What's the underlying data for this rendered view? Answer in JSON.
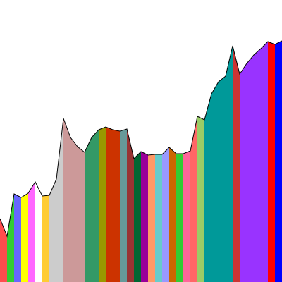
{
  "chart_data": {
    "type": "area",
    "title": "",
    "xlabel": "",
    "ylabel": "",
    "legend": "none",
    "grid": false,
    "xlim": [
      0,
      40
    ],
    "ylim": [
      0,
      40
    ],
    "profile": [
      [
        0,
        9
      ],
      [
        1,
        6.5
      ],
      [
        2,
        12.5
      ],
      [
        3,
        12
      ],
      [
        4,
        12.6
      ],
      [
        5,
        14.2
      ],
      [
        6,
        12.2
      ],
      [
        7,
        12.3
      ],
      [
        8,
        14.6
      ],
      [
        9,
        23.2
      ],
      [
        10,
        20.5
      ],
      [
        11,
        19.2
      ],
      [
        12,
        18.4
      ],
      [
        13,
        20.5
      ],
      [
        14,
        21.6
      ],
      [
        15,
        22.0
      ],
      [
        16,
        21.6
      ],
      [
        17,
        21.4
      ],
      [
        18,
        21.7
      ],
      [
        19,
        17.5
      ],
      [
        20,
        18.5
      ],
      [
        21,
        18.0
      ],
      [
        22,
        18.1
      ],
      [
        23,
        18.1
      ],
      [
        24,
        19.1
      ],
      [
        25,
        18.2
      ],
      [
        26,
        18.2
      ],
      [
        27,
        18.6
      ],
      [
        28,
        23.5
      ],
      [
        29,
        23.0
      ],
      [
        30,
        26.7
      ],
      [
        31,
        28.4
      ],
      [
        32,
        29.2
      ],
      [
        33,
        33.5
      ],
      [
        34,
        29.5
      ],
      [
        35,
        31.0
      ],
      [
        36,
        32.2
      ],
      [
        37,
        33.1
      ],
      [
        38,
        34.1
      ],
      [
        39,
        33.7
      ],
      [
        40,
        34.2
      ]
    ],
    "bands": [
      {
        "from": 0,
        "to": 1,
        "color": "#ff4d4d"
      },
      {
        "from": 1,
        "to": 2,
        "color": "#33cc33"
      },
      {
        "from": 2,
        "to": 3,
        "color": "#6666ff"
      },
      {
        "from": 3,
        "to": 4,
        "color": "#ffff00"
      },
      {
        "from": 4,
        "to": 5,
        "color": "#ff66ff"
      },
      {
        "from": 5,
        "to": 6,
        "color": "#ffffff"
      },
      {
        "from": 6,
        "to": 7,
        "color": "#ffcc33"
      },
      {
        "from": 7,
        "to": 9,
        "color": "#cccccc"
      },
      {
        "from": 9,
        "to": 12,
        "color": "#cc9999"
      },
      {
        "from": 12,
        "to": 14,
        "color": "#339966"
      },
      {
        "from": 14,
        "to": 15,
        "color": "#999900"
      },
      {
        "from": 15,
        "to": 17,
        "color": "#cc3300"
      },
      {
        "from": 17,
        "to": 18,
        "color": "#669999"
      },
      {
        "from": 18,
        "to": 19,
        "color": "#993333"
      },
      {
        "from": 19,
        "to": 20,
        "color": "#006633"
      },
      {
        "from": 20,
        "to": 21,
        "color": "#990099"
      },
      {
        "from": 21,
        "to": 22,
        "color": "#ff9966"
      },
      {
        "from": 22,
        "to": 23,
        "color": "#66cccc"
      },
      {
        "from": 23,
        "to": 24,
        "color": "#9999ff"
      },
      {
        "from": 24,
        "to": 25,
        "color": "#cc6600"
      },
      {
        "from": 25,
        "to": 26,
        "color": "#33cc33"
      },
      {
        "from": 26,
        "to": 27,
        "color": "#ff6699"
      },
      {
        "from": 27,
        "to": 28,
        "color": "#ff6666"
      },
      {
        "from": 28,
        "to": 29,
        "color": "#99cc66"
      },
      {
        "from": 29,
        "to": 33,
        "color": "#009999"
      },
      {
        "from": 33,
        "to": 34,
        "color": "#cc3333"
      },
      {
        "from": 34,
        "to": 38,
        "color": "#9933ff"
      },
      {
        "from": 38,
        "to": 39,
        "color": "#ff0000"
      },
      {
        "from": 39,
        "to": 40,
        "color": "#0000ff"
      }
    ]
  }
}
